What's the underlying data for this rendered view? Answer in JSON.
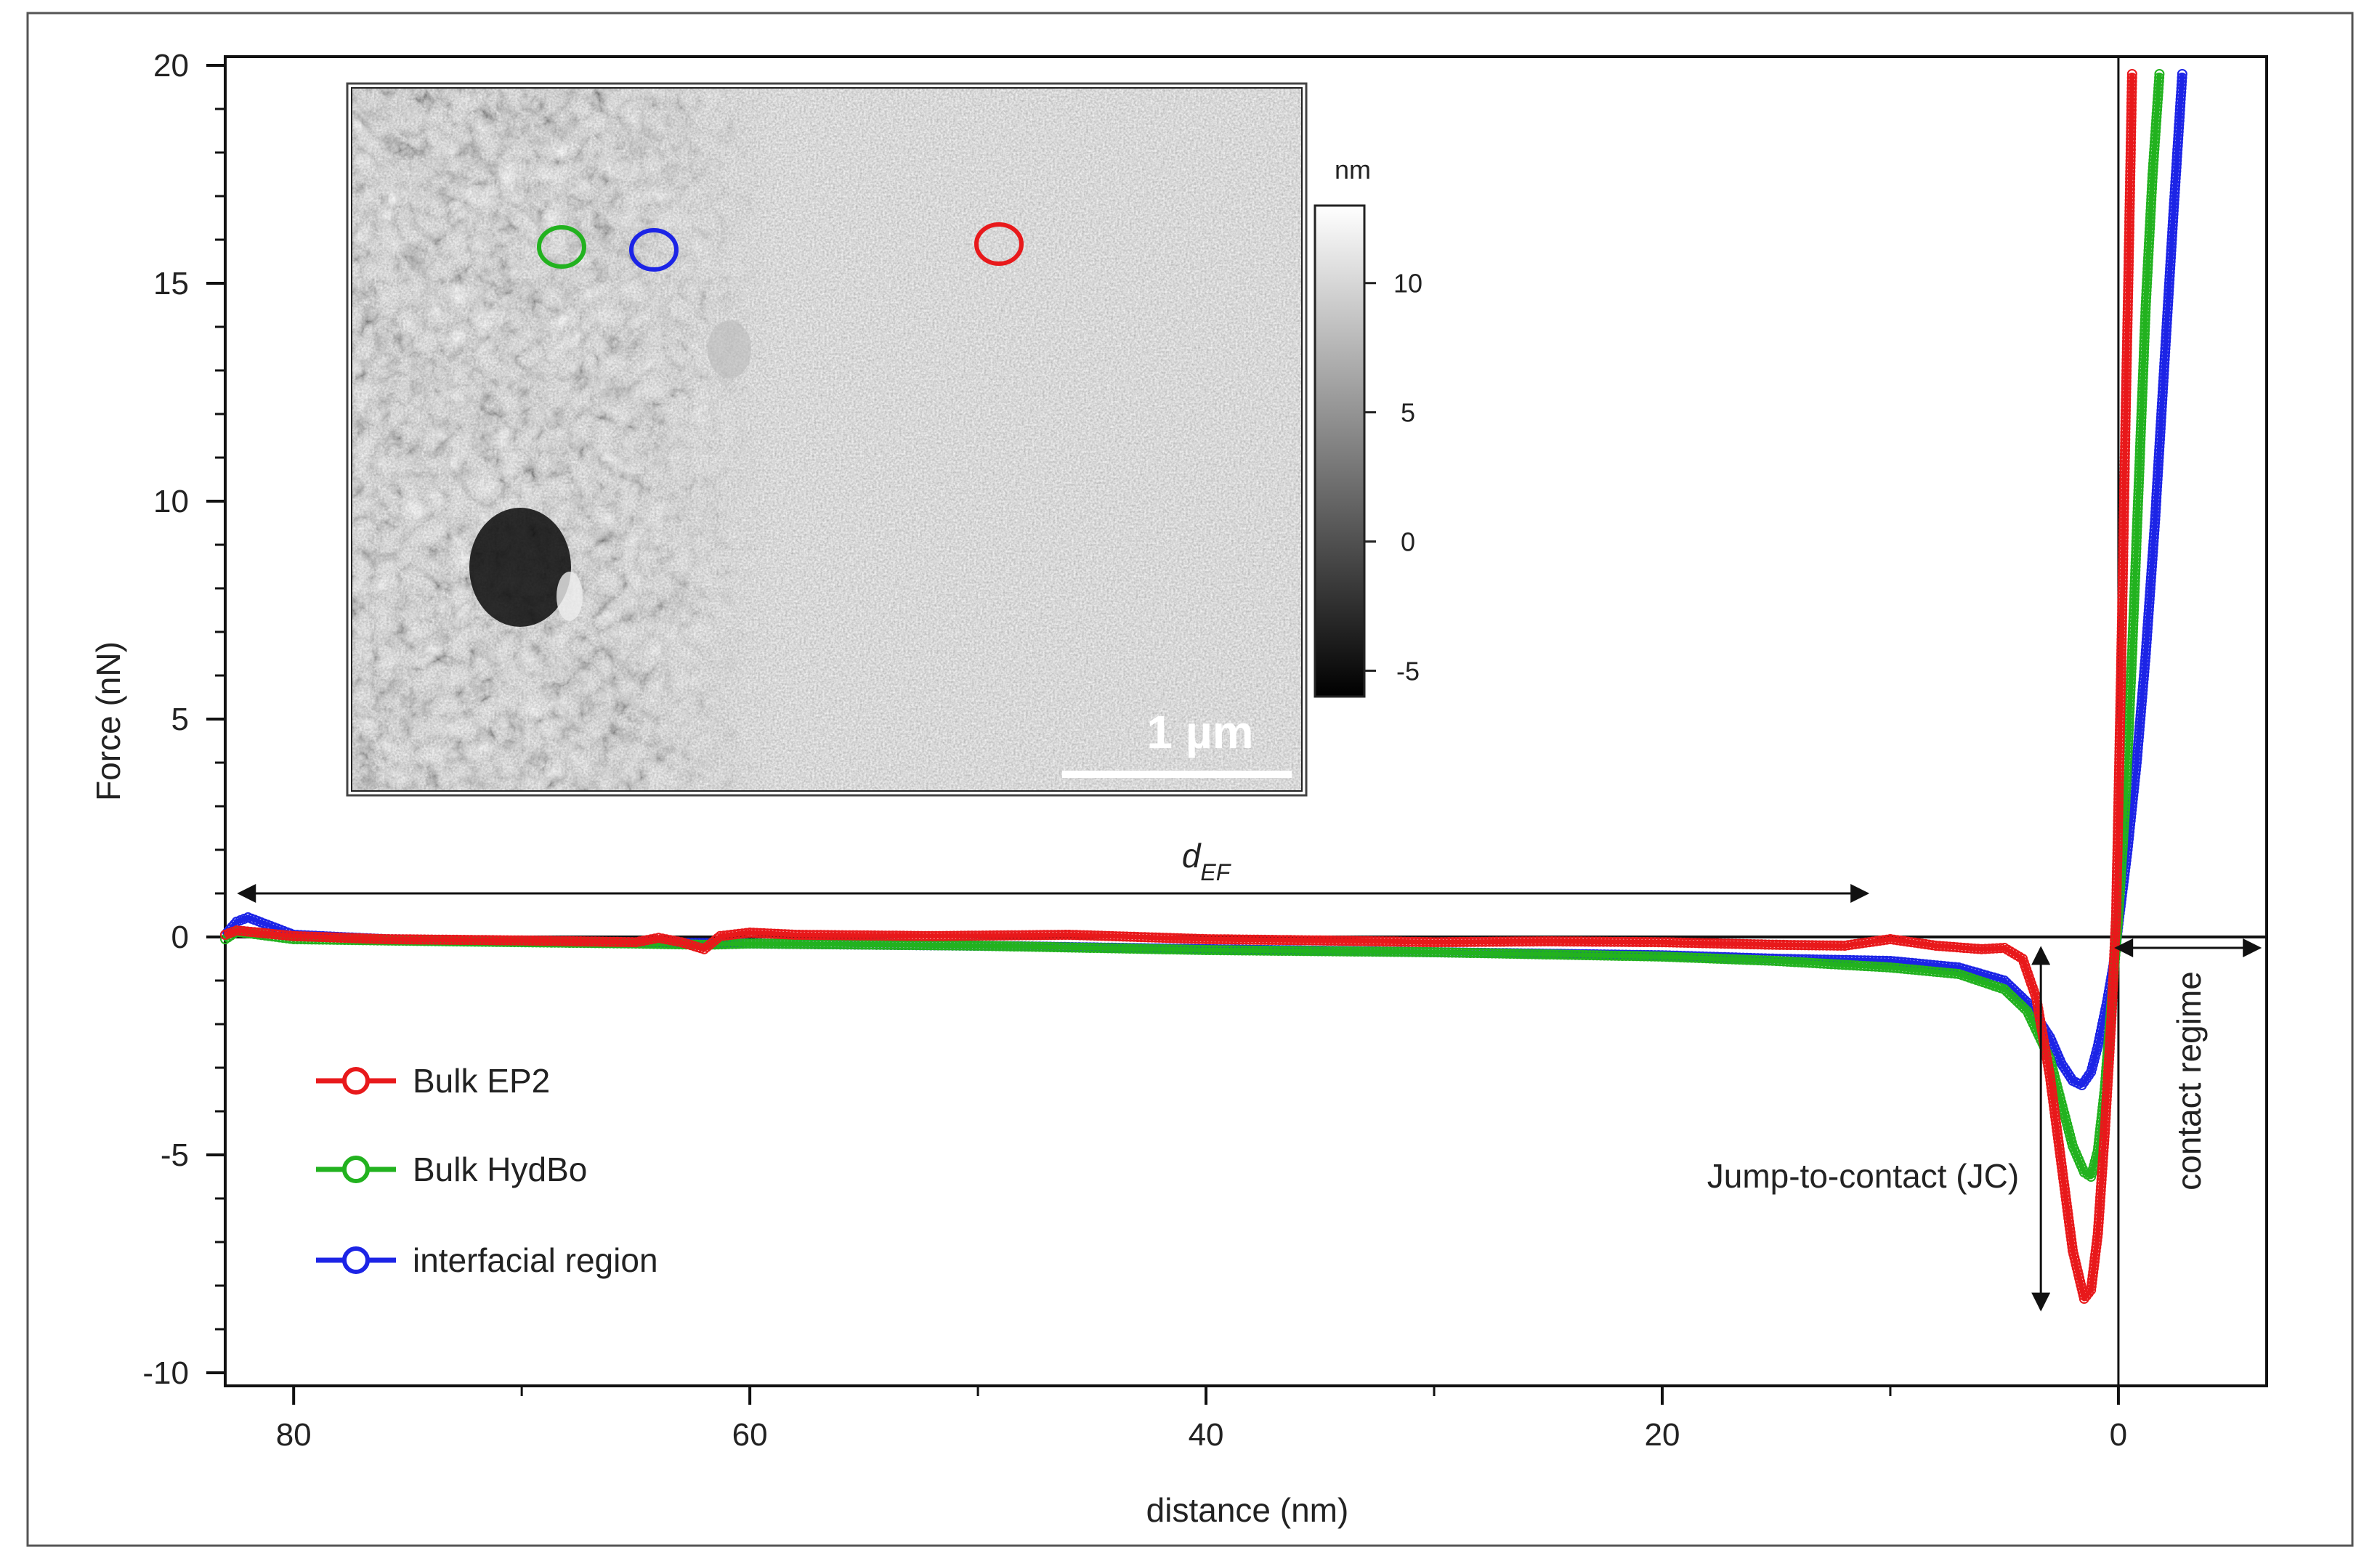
{
  "chart_data": {
    "type": "scatter",
    "xlabel": "distance (nm)",
    "ylabel": "Force (nN)",
    "xlim": [
      83,
      -6.5
    ],
    "ylim": [
      -10.3,
      20.2
    ],
    "x_reversed": true,
    "xticks": [
      80,
      60,
      40,
      20,
      0
    ],
    "yticks": [
      20,
      15,
      10,
      5,
      0,
      -5,
      -10
    ],
    "series": [
      {
        "name": "Bulk EP2",
        "color": "#e8191b",
        "points": [
          [
            83,
            0.05
          ],
          [
            82.5,
            0.15
          ],
          [
            80,
            0.02
          ],
          [
            76,
            -0.05
          ],
          [
            70,
            -0.08
          ],
          [
            65,
            -0.12
          ],
          [
            64,
            -0.02
          ],
          [
            63,
            -0.12
          ],
          [
            62,
            -0.28
          ],
          [
            61.3,
            0.02
          ],
          [
            60,
            0.1
          ],
          [
            58,
            0.05
          ],
          [
            52,
            0.02
          ],
          [
            46,
            0.05
          ],
          [
            40,
            -0.05
          ],
          [
            35,
            -0.08
          ],
          [
            30,
            -0.12
          ],
          [
            25,
            -0.1
          ],
          [
            20,
            -0.12
          ],
          [
            15,
            -0.18
          ],
          [
            12,
            -0.2
          ],
          [
            10,
            -0.05
          ],
          [
            8,
            -0.2
          ],
          [
            6,
            -0.28
          ],
          [
            5,
            -0.25
          ],
          [
            4.2,
            -0.5
          ],
          [
            3.6,
            -1.4
          ],
          [
            3.0,
            -3.2
          ],
          [
            2.5,
            -5.2
          ],
          [
            2.0,
            -7.2
          ],
          [
            1.5,
            -8.3
          ],
          [
            1.2,
            -8.1
          ],
          [
            0.9,
            -6.8
          ],
          [
            0.6,
            -4.5
          ],
          [
            0.3,
            -1.8
          ],
          [
            0.1,
            0.5
          ],
          [
            0.0,
            3.0
          ],
          [
            -0.15,
            7.0
          ],
          [
            -0.3,
            11.5
          ],
          [
            -0.45,
            15.5
          ],
          [
            -0.6,
            19.8
          ]
        ]
      },
      {
        "name": "Bulk HydBo",
        "color": "#22b21f",
        "points": [
          [
            83,
            -0.05
          ],
          [
            82.5,
            0.12
          ],
          [
            80,
            -0.05
          ],
          [
            76,
            -0.08
          ],
          [
            70,
            -0.12
          ],
          [
            65,
            -0.15
          ],
          [
            62,
            -0.18
          ],
          [
            60,
            -0.15
          ],
          [
            50,
            -0.2
          ],
          [
            40,
            -0.3
          ],
          [
            30,
            -0.35
          ],
          [
            20,
            -0.45
          ],
          [
            15,
            -0.55
          ],
          [
            10,
            -0.7
          ],
          [
            7,
            -0.85
          ],
          [
            5,
            -1.2
          ],
          [
            4,
            -1.7
          ],
          [
            3,
            -2.8
          ],
          [
            2.5,
            -3.8
          ],
          [
            2.0,
            -4.8
          ],
          [
            1.5,
            -5.4
          ],
          [
            1.2,
            -5.5
          ],
          [
            0.9,
            -4.9
          ],
          [
            0.6,
            -3.5
          ],
          [
            0.3,
            -1.5
          ],
          [
            0.0,
            0.5
          ],
          [
            -0.3,
            3.0
          ],
          [
            -0.6,
            6.5
          ],
          [
            -0.9,
            10.5
          ],
          [
            -1.2,
            14.5
          ],
          [
            -1.5,
            17.5
          ],
          [
            -1.8,
            19.8
          ]
        ]
      },
      {
        "name": "interfacial region",
        "color": "#1c24e6",
        "points": [
          [
            83,
            0.05
          ],
          [
            82.5,
            0.35
          ],
          [
            82,
            0.45
          ],
          [
            81,
            0.25
          ],
          [
            80,
            0.05
          ],
          [
            76,
            -0.05
          ],
          [
            70,
            -0.1
          ],
          [
            60,
            -0.15
          ],
          [
            50,
            -0.2
          ],
          [
            40,
            -0.28
          ],
          [
            30,
            -0.35
          ],
          [
            20,
            -0.42
          ],
          [
            15,
            -0.5
          ],
          [
            10,
            -0.55
          ],
          [
            7,
            -0.7
          ],
          [
            5,
            -1.0
          ],
          [
            4,
            -1.5
          ],
          [
            3,
            -2.3
          ],
          [
            2.5,
            -2.9
          ],
          [
            2.0,
            -3.3
          ],
          [
            1.6,
            -3.4
          ],
          [
            1.2,
            -3.1
          ],
          [
            0.9,
            -2.5
          ],
          [
            0.5,
            -1.5
          ],
          [
            0.2,
            -0.6
          ],
          [
            0.0,
            0.3
          ],
          [
            -0.4,
            2.0
          ],
          [
            -0.8,
            4.0
          ],
          [
            -1.2,
            6.5
          ],
          [
            -1.6,
            9.5
          ],
          [
            -2.0,
            13.0
          ],
          [
            -2.4,
            16.5
          ],
          [
            -2.8,
            19.8
          ]
        ]
      }
    ],
    "annotations": {
      "d_ef_main": "d",
      "d_ef_sub": "EF",
      "jump_to_contact": "Jump-to-contact (JC)",
      "contact_regime": "contact regime"
    },
    "legend": {
      "placement": "lower-left"
    },
    "inset": {
      "colorbar_unit": "nm",
      "colorbar_ticks": [
        10,
        5,
        0,
        -5
      ],
      "colorbar_range": [
        -6,
        13
      ],
      "scale_bar": "1 µm",
      "markers": [
        {
          "series": "Bulk HydBo",
          "color": "#22b21f"
        },
        {
          "series": "interfacial region",
          "color": "#1c24e6"
        },
        {
          "series": "Bulk EP2",
          "color": "#e8191b"
        }
      ]
    }
  }
}
